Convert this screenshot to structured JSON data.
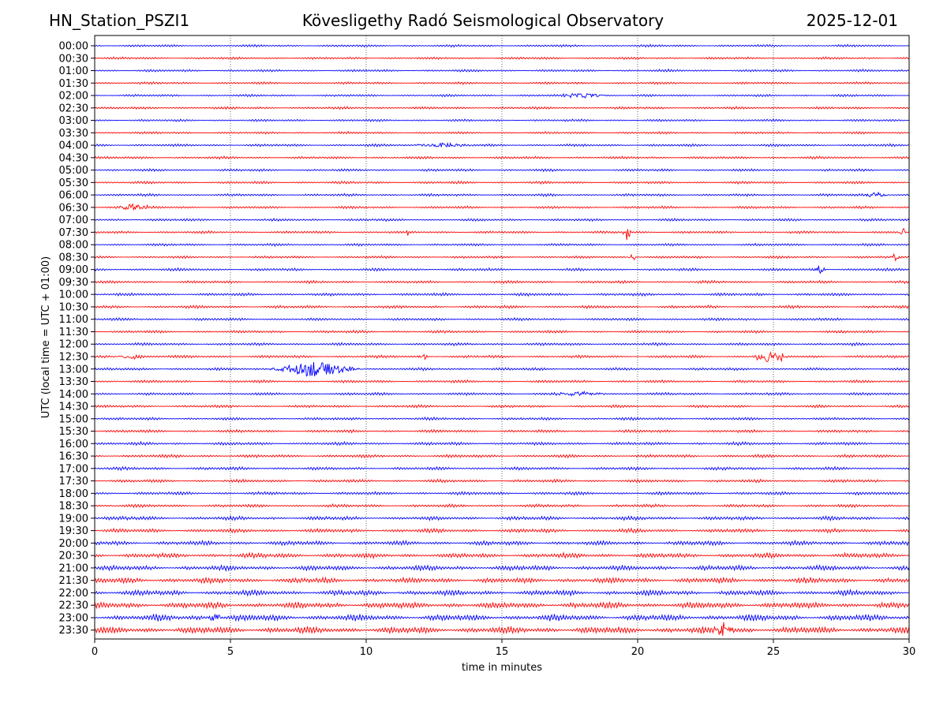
{
  "header": {
    "station": "HN_Station_PSZI1",
    "title": "Kövesligethy Radó Seismological Observatory",
    "date": "2025-12-01"
  },
  "chart_data": {
    "type": "line",
    "subtype": "helicorder",
    "xlabel": "time in minutes",
    "ylabel": "UTC (local time = UTC + 01:00)",
    "xlim": [
      0,
      30
    ],
    "x_ticks": [
      0,
      5,
      10,
      15,
      20,
      25,
      30
    ],
    "grid": "vertical dotted at 5-minute intervals",
    "trace_colors": [
      "#0000ff",
      "#ff0000"
    ],
    "row_labels": [
      "00:00",
      "00:30",
      "01:00",
      "01:30",
      "02:00",
      "02:30",
      "03:00",
      "03:30",
      "04:00",
      "04:30",
      "05:00",
      "05:30",
      "06:00",
      "06:30",
      "07:00",
      "07:30",
      "08:00",
      "08:30",
      "09:00",
      "09:30",
      "10:00",
      "10:30",
      "11:00",
      "11:30",
      "12:00",
      "12:30",
      "13:00",
      "13:30",
      "14:00",
      "14:30",
      "15:00",
      "15:30",
      "16:00",
      "16:30",
      "17:00",
      "17:30",
      "18:00",
      "18:30",
      "19:00",
      "19:30",
      "20:00",
      "20:30",
      "21:00",
      "21:30",
      "22:00",
      "22:30",
      "23:00",
      "23:30"
    ],
    "noise_amplitude": [
      1.2,
      1.2,
      1.2,
      1.2,
      1.2,
      1.3,
      1.2,
      1.2,
      1.3,
      1.3,
      1.3,
      1.3,
      1.3,
      1.3,
      1.3,
      1.3,
      1.3,
      1.3,
      1.4,
      1.4,
      1.5,
      1.5,
      1.4,
      1.4,
      1.4,
      1.4,
      1.4,
      1.4,
      1.4,
      1.4,
      1.4,
      1.5,
      1.6,
      1.6,
      1.6,
      1.6,
      1.6,
      1.6,
      2.0,
      2.0,
      2.3,
      2.5,
      2.6,
      2.8,
      2.8,
      3.2,
      3.3,
      3.5
    ],
    "events": [
      {
        "row": "04:00",
        "minute": 12.8,
        "duration": 1.2,
        "amplitude": 3
      },
      {
        "row": "02:00",
        "minute": 18.0,
        "duration": 1.0,
        "amplitude": 3
      },
      {
        "row": "06:00",
        "minute": 28.8,
        "duration": 0.5,
        "amplitude": 5
      },
      {
        "row": "06:30",
        "minute": 1.4,
        "duration": 0.8,
        "amplitude": 4
      },
      {
        "row": "07:30",
        "minute": 11.5,
        "duration": 0.1,
        "amplitude": 5
      },
      {
        "row": "07:30",
        "minute": 19.6,
        "duration": 0.15,
        "amplitude": 14
      },
      {
        "row": "07:30",
        "minute": 29.8,
        "duration": 0.2,
        "amplitude": 5
      },
      {
        "row": "08:30",
        "minute": 19.8,
        "duration": 0.15,
        "amplitude": 7
      },
      {
        "row": "08:30",
        "minute": 29.5,
        "duration": 0.2,
        "amplitude": 5
      },
      {
        "row": "09:00",
        "minute": 26.7,
        "duration": 0.3,
        "amplitude": 5
      },
      {
        "row": "12:30",
        "minute": 1.4,
        "duration": 0.6,
        "amplitude": 4
      },
      {
        "row": "12:30",
        "minute": 12.1,
        "duration": 0.2,
        "amplitude": 4
      },
      {
        "row": "12:30",
        "minute": 24.7,
        "duration": 0.5,
        "amplitude": 9
      },
      {
        "row": "12:30",
        "minute": 25.2,
        "duration": 0.3,
        "amplitude": 8
      },
      {
        "row": "13:00",
        "minute": 8.1,
        "duration": 1.8,
        "amplitude": 10
      },
      {
        "row": "14:00",
        "minute": 17.8,
        "duration": 1.2,
        "amplitude": 3
      },
      {
        "row": "23:00",
        "minute": 4.4,
        "duration": 0.3,
        "amplitude": 7
      },
      {
        "row": "23:30",
        "minute": 23.2,
        "duration": 0.4,
        "amplitude": 10
      }
    ]
  }
}
